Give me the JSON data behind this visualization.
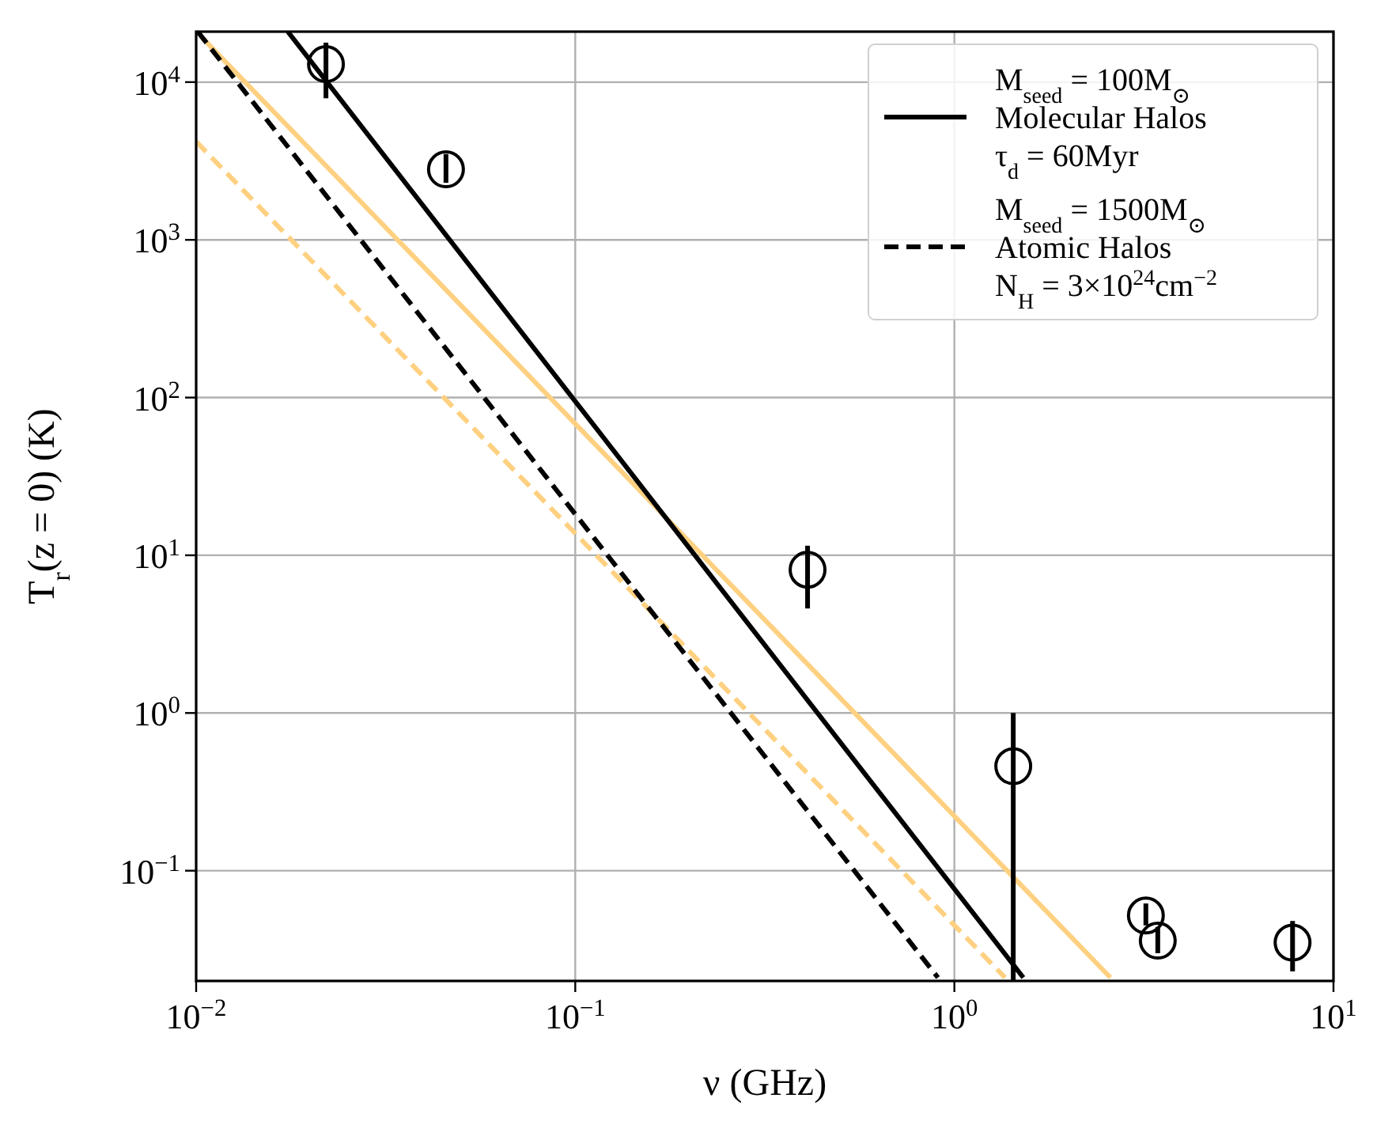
{
  "chart_data": {
    "type": "line",
    "xlabel": "ν (GHz)",
    "ylabel": "T$_{r}$(z = 0) (K)",
    "log": "xy",
    "xlim": [
      0.01,
      10
    ],
    "ylim": [
      0.02,
      20900
    ],
    "xticks": [
      {
        "value": 0.01,
        "label": "10$^{−2}$"
      },
      {
        "value": 0.1,
        "label": "10$^{−1}$"
      },
      {
        "value": 1,
        "label": "10$^{0}$"
      },
      {
        "value": 10,
        "label": "10$^{1}$"
      }
    ],
    "yticks": [
      {
        "value": 0.1,
        "label": "10$^{−1}$"
      },
      {
        "value": 1,
        "label": "10$^{0}$"
      },
      {
        "value": 10,
        "label": "10$^{1}$"
      },
      {
        "value": 100,
        "label": "10$^{2}$"
      },
      {
        "value": 1000,
        "label": "10$^{3}$"
      },
      {
        "value": 10000,
        "label": "10$^{4}$"
      }
    ],
    "grid": true,
    "legend": "top right",
    "line_style": "solid",
    "marker": "none",
    "series": [
      {
        "color": "#fed080",
        "x": [
          0.0103,
          2.58
        ],
        "values": [
          19500,
          0.021
        ]
      },
      {
        "color": "#fed080",
        "line_style": "dashed",
        "x": [
          0.01,
          1.36
        ],
        "values": [
          4200,
          0.021
        ]
      },
      {
        "name": "M$_{seed}$ = 100M$_{⊙}$\nMolecular Halos\nτ$_{d}$ = 60Myr",
        "color": "#000000",
        "x": [
          0.01745,
          1.52
        ],
        "values": [
          20900,
          0.021
        ]
      },
      {
        "name": "M$_{seed}$ = 1500M$_{⊙}$\nAtomic Halos\nN$_{H}$ = 3×10$^{24}$cm$^{−2}$",
        "color": "#000000",
        "line_style": "dashed",
        "x": [
          0.0101,
          0.905
        ],
        "values": [
          20900,
          0.021
        ]
      },
      {
        "type": "scatter",
        "color": "#000000",
        "marker": "circle",
        "x": [
          0.022,
          0.0456,
          0.41,
          1.43,
          3.2,
          3.44,
          7.8
        ],
        "values": [
          13000,
          2800,
          8.1,
          0.46,
          0.052,
          0.036,
          0.035
        ],
        "errors": [
          [
            7900,
            17800
          ],
          [
            2300,
            3500
          ],
          [
            4.6,
            11.5
          ],
          [
            0.02,
            1.0
          ],
          [
            0.045,
            0.062
          ],
          [
            0.03,
            0.044
          ],
          [
            0.023,
            0.048
          ]
        ]
      }
    ]
  }
}
